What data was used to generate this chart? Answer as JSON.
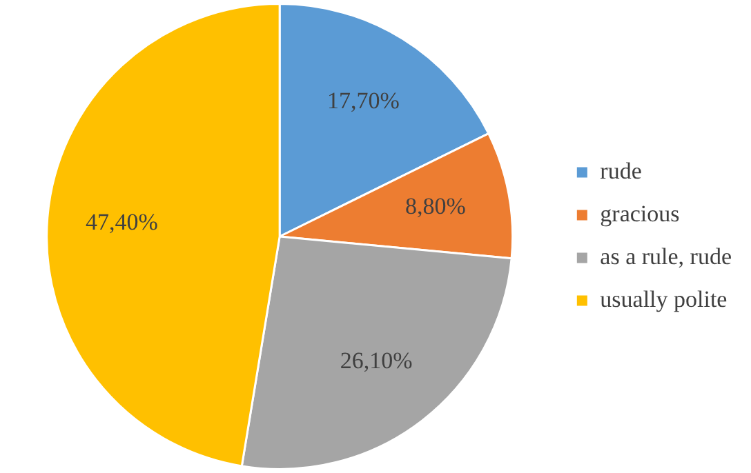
{
  "chart_data": {
    "type": "pie",
    "categories": [
      "rude",
      "gracious",
      "as a rule, rude",
      "usually polite"
    ],
    "values": [
      17.7,
      8.8,
      26.1,
      47.4
    ],
    "colors": [
      "#5b9bd5",
      "#ed7d31",
      "#a5a5a5",
      "#ffc000"
    ],
    "value_labels": [
      "17,70%",
      "8,80%",
      "26,10%",
      "47,40%"
    ],
    "legend": "right"
  }
}
